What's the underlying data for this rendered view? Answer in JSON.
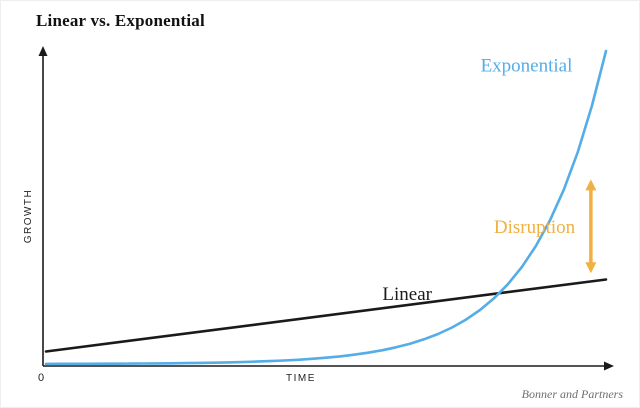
{
  "title": "Linear vs. Exponential",
  "attribution": "Bonner and Partners",
  "axes": {
    "x_label": "TIME",
    "y_label": "GROWTH",
    "origin_label": "0"
  },
  "colors": {
    "exponential": "#54ade6",
    "linear": "#1a1a1a",
    "disruption": "#f0b042",
    "axis": "#1a1a1a"
  },
  "chart_data": {
    "type": "line",
    "title": "Linear vs. Exponential",
    "xlabel": "TIME",
    "ylabel": "GROWTH",
    "xlim": [
      0,
      10
    ],
    "ylim": [
      0,
      10
    ],
    "grid": false,
    "legend_position": "none",
    "series": [
      {
        "name": "Linear",
        "color": "#1a1a1a",
        "width": 2.6,
        "x": [
          0,
          10
        ],
        "values": [
          0.4,
          2.7
        ],
        "label": {
          "text": "Linear",
          "x": 6.45,
          "y": 2.05,
          "anchor": "middle"
        }
      },
      {
        "name": "Exponential",
        "color": "#54ade6",
        "width": 2.6,
        "x": [
          0,
          0.25,
          0.5,
          0.75,
          1,
          1.25,
          1.5,
          1.75,
          2,
          2.25,
          2.5,
          2.75,
          3,
          3.25,
          3.5,
          3.75,
          4,
          4.25,
          4.5,
          4.75,
          5,
          5.25,
          5.5,
          5.75,
          6,
          6.25,
          6.5,
          6.75,
          7,
          7.25,
          7.5,
          7.75,
          8,
          8.25,
          8.5,
          8.75,
          9,
          9.25,
          9.5,
          9.75,
          10
        ],
        "values": [
          0.004,
          0.0049,
          0.0059,
          0.0072,
          0.0088,
          0.0106,
          0.0129,
          0.0157,
          0.0191,
          0.0233,
          0.0283,
          0.0344,
          0.0419,
          0.0509,
          0.062,
          0.0753,
          0.0916,
          0.1114,
          0.1355,
          0.1648,
          0.2005,
          0.2438,
          0.2965,
          0.3606,
          0.4385,
          0.5333,
          0.6486,
          0.7888,
          0.9594,
          1.1667,
          1.419,
          1.7257,
          2.0988,
          2.5525,
          3.1043,
          3.7753,
          4.5914,
          5.584,
          6.7911,
          8.2592,
          10
        ],
        "label": {
          "text": "Exponential",
          "x": 9.4,
          "y": 9.35,
          "anchor": "end"
        }
      }
    ],
    "annotations": [
      {
        "type": "double-arrow",
        "x": 9.73,
        "y_from": 2.9,
        "y_to": 5.9,
        "color": "#f0b042",
        "label": {
          "text": "Disruption",
          "x": 9.45,
          "y": 4.19,
          "anchor": "end"
        }
      }
    ]
  }
}
